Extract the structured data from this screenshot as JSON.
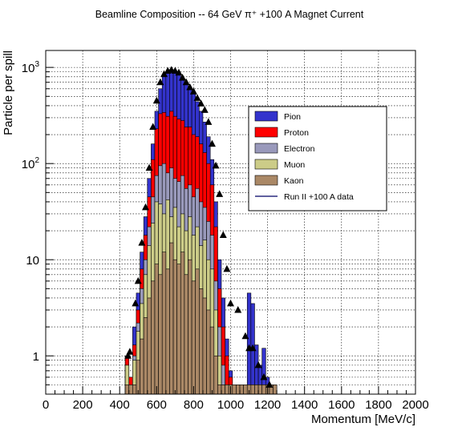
{
  "chart_data": {
    "type": "area",
    "title": "Beamline Composition -- 64 GeV π⁺ +100 A Magnet Current",
    "xlabel": "Momentum [MeV/c]",
    "ylabel": "Particle per spill",
    "xlim": [
      0,
      2000
    ],
    "ylim": [
      0.4,
      1500
    ],
    "y_scale": "log",
    "grid": true,
    "legend_position": "right-center",
    "x_ticks": [
      0,
      200,
      400,
      600,
      800,
      1000,
      1200,
      1400,
      1600,
      1800,
      2000
    ],
    "y_tick_labels": [
      {
        "value": 1,
        "label": "1"
      },
      {
        "value": 10,
        "label": "10"
      },
      {
        "value": 100,
        "label": "10",
        "exp": "2"
      },
      {
        "value": 1000,
        "label": "10",
        "exp": "3"
      }
    ],
    "bin_width": 20,
    "x": [
      440,
      460,
      480,
      500,
      520,
      540,
      560,
      580,
      600,
      620,
      640,
      660,
      680,
      700,
      720,
      740,
      760,
      780,
      800,
      820,
      840,
      860,
      880,
      900,
      920,
      940,
      960,
      980,
      1000,
      1020,
      1040,
      1060,
      1080,
      1100,
      1120,
      1140,
      1160,
      1180,
      1200,
      1220,
      1240
    ],
    "series": [
      {
        "name": "Pion",
        "color": "#3333cc",
        "values": [
          1.0,
          0.6,
          2.0,
          4.5,
          12,
          28,
          70,
          160,
          350,
          600,
          800,
          920,
          950,
          910,
          850,
          760,
          680,
          620,
          540,
          440,
          350,
          270,
          190,
          110,
          40,
          10,
          4,
          1.5,
          0.7,
          0.5,
          0.5,
          0.5,
          0.5,
          4.5,
          3.5,
          1.3,
          0.8,
          1.2,
          0.6,
          0.5,
          0.5
        ]
      },
      {
        "name": "Proton",
        "color": "#ff0000",
        "values": [
          1.0,
          0.6,
          1.3,
          3.0,
          8,
          18,
          45,
          110,
          230,
          330,
          340,
          310,
          350,
          310,
          290,
          280,
          240,
          240,
          200,
          190,
          160,
          130,
          100,
          60,
          22,
          5,
          2,
          1,
          0.6,
          0.5,
          0.5,
          0.5,
          0.5,
          0.5,
          0.5,
          0.5,
          0.5,
          0.5,
          0.5,
          0.5,
          0.5
        ]
      },
      {
        "name": "Electron",
        "color": "#9999bb",
        "values": [
          0.8,
          0.5,
          1.0,
          2.2,
          5,
          10,
          22,
          45,
          75,
          95,
          100,
          80,
          90,
          70,
          65,
          75,
          55,
          60,
          45,
          55,
          40,
          35,
          25,
          18,
          6,
          2,
          0.8,
          0.5,
          0.5,
          0.5,
          0.5,
          0.5,
          0.5,
          0.5,
          0.5,
          0.5,
          0.5,
          0.5,
          0.5,
          0.5,
          0.5
        ]
      },
      {
        "name": "Muon",
        "color": "#cccc88",
        "values": [
          0.8,
          0.5,
          0.9,
          1.8,
          3.5,
          7,
          14,
          24,
          40,
          38,
          30,
          42,
          28,
          35,
          22,
          30,
          20,
          28,
          18,
          22,
          14,
          16,
          10,
          8,
          3,
          1,
          0.5,
          0.5,
          0.5,
          0.5,
          0.5,
          0.5,
          0.5,
          0.5,
          0.5,
          0.5,
          0.5,
          0.5,
          0.5,
          0.5,
          0.5
        ]
      },
      {
        "name": "Kaon",
        "color": "#aa8866",
        "values": [
          0.5,
          0.5,
          0.5,
          0.9,
          1.5,
          2.5,
          4,
          6,
          9,
          7,
          12,
          8,
          15,
          10,
          9,
          12,
          7,
          10,
          6,
          8,
          5,
          4,
          3,
          2,
          1,
          0.5,
          0.5,
          0.5,
          0.5,
          0.5,
          0.5,
          0.5,
          0.5,
          0.5,
          0.5,
          0.5,
          0.5,
          0.5,
          0.5,
          0.5,
          0.5
        ]
      },
      {
        "name": "Run II +100 A data",
        "type": "points",
        "color": "#000000",
        "points": [
          [
            445,
            1.0
          ],
          [
            455,
            1.1
          ],
          [
            485,
            3.5
          ],
          [
            500,
            6
          ],
          [
            520,
            15
          ],
          [
            540,
            35
          ],
          [
            560,
            90
          ],
          [
            580,
            240
          ],
          [
            600,
            450
          ],
          [
            620,
            700
          ],
          [
            640,
            850
          ],
          [
            660,
            920
          ],
          [
            680,
            940
          ],
          [
            700,
            920
          ],
          [
            720,
            880
          ],
          [
            740,
            780
          ],
          [
            760,
            700
          ],
          [
            780,
            620
          ],
          [
            800,
            560
          ],
          [
            820,
            480
          ],
          [
            840,
            420
          ],
          [
            860,
            360
          ],
          [
            880,
            270
          ],
          [
            900,
            160
          ],
          [
            920,
            95
          ],
          [
            940,
            48
          ],
          [
            960,
            18
          ],
          [
            980,
            8
          ],
          [
            1000,
            3.5
          ],
          [
            1040,
            3.0
          ],
          [
            1080,
            1.6
          ],
          [
            1100,
            1.2
          ],
          [
            1120,
            1.2
          ],
          [
            1150,
            0.8
          ],
          [
            1180,
            0.6
          ],
          [
            1210,
            0.5
          ]
        ]
      }
    ]
  }
}
